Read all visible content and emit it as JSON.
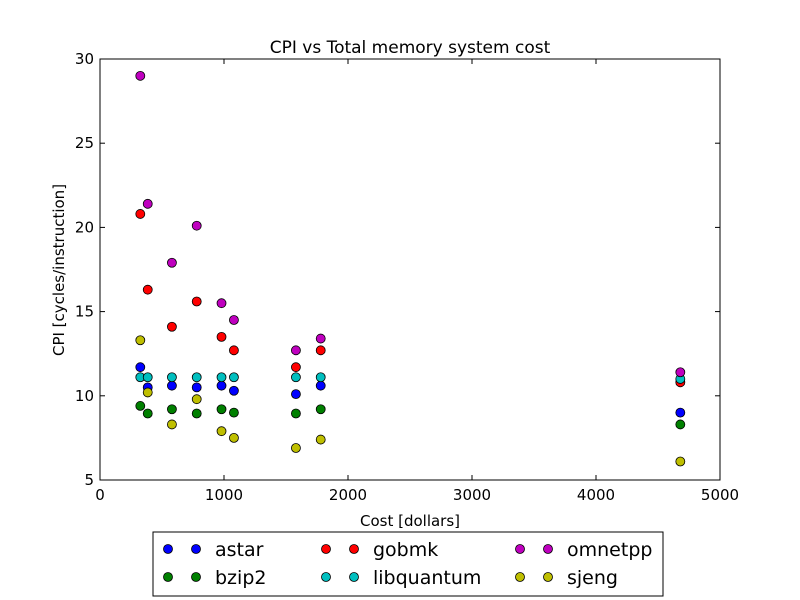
{
  "chart_data": {
    "type": "scatter",
    "title": "CPI vs Total memory system cost",
    "xlabel": "Cost [dollars]",
    "ylabel": "CPI [cycles/instruction]",
    "xlim": [
      0,
      5000
    ],
    "ylim": [
      5,
      30
    ],
    "xticks": [
      0,
      1000,
      2000,
      3000,
      4000,
      5000
    ],
    "yticks": [
      5,
      10,
      15,
      20,
      25,
      30
    ],
    "grid": false,
    "legend_position": "below",
    "x": [
      325,
      385,
      580,
      780,
      980,
      1080,
      1580,
      1780,
      4680
    ],
    "series": [
      {
        "name": "astar",
        "color": "#0000ff",
        "values": [
          11.7,
          10.5,
          10.6,
          10.5,
          10.6,
          10.3,
          10.1,
          10.6,
          9.0
        ]
      },
      {
        "name": "bzip2",
        "color": "#008000",
        "values": [
          9.4,
          8.95,
          9.2,
          8.95,
          9.2,
          9.0,
          8.95,
          9.2,
          8.3
        ]
      },
      {
        "name": "gobmk",
        "color": "#ff0000",
        "values": [
          20.8,
          16.3,
          14.1,
          15.6,
          13.5,
          12.7,
          11.7,
          12.7,
          10.8
        ]
      },
      {
        "name": "libquantum",
        "color": "#00bfbf",
        "values": [
          11.1,
          11.1,
          11.1,
          11.1,
          11.1,
          11.1,
          11.1,
          11.1,
          11.0
        ]
      },
      {
        "name": "omnetpp",
        "color": "#bf00bf",
        "values": [
          29.0,
          21.4,
          17.9,
          20.1,
          15.5,
          14.5,
          12.7,
          13.4,
          11.4
        ]
      },
      {
        "name": "sjeng",
        "color": "#bfbf00",
        "values": [
          13.3,
          10.2,
          8.3,
          9.8,
          7.9,
          7.5,
          6.9,
          7.4,
          6.1
        ]
      }
    ]
  }
}
